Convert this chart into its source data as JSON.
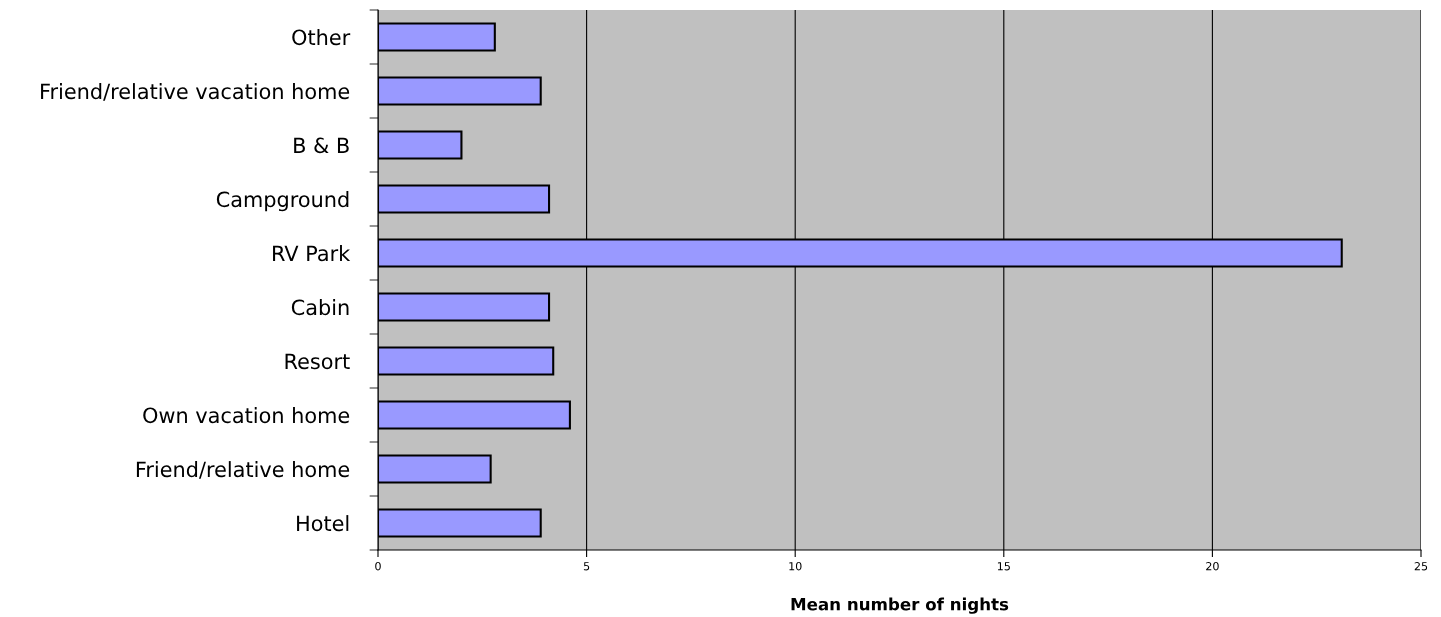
{
  "chart_data": {
    "type": "bar",
    "orientation": "horizontal",
    "xlabel": "Mean number of nights",
    "categories": [
      "Other",
      "Friend/relative vacation home",
      "B & B",
      "Campground",
      "RV Park",
      "Cabin",
      "Resort",
      "Own vacation home",
      "Friend/relative home",
      "Hotel"
    ],
    "values": [
      2.8,
      3.9,
      2.0,
      4.1,
      23.1,
      4.1,
      4.2,
      4.6,
      2.7,
      3.9
    ],
    "color": "#9999ff",
    "xlim": [
      0,
      25
    ],
    "xticks": [
      0,
      5,
      10,
      15,
      20,
      25
    ],
    "grid": "x",
    "legend": false
  }
}
